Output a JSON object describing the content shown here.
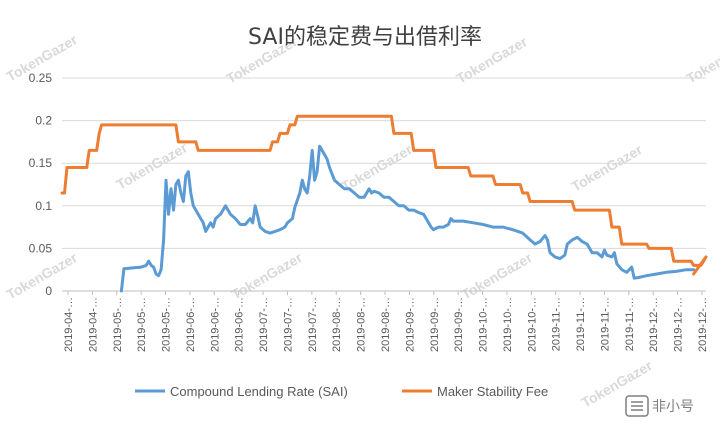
{
  "watermark": "TokenGazer",
  "logo_text": "非小号",
  "chart_data": {
    "type": "line",
    "title": "SAI的稳定费与出借利率",
    "ylim": [
      0,
      0.25
    ],
    "yticks": [
      "0",
      "0.05",
      "0.1",
      "0.15",
      "0.2",
      "0.25"
    ],
    "xticks": [
      "2019-04-…",
      "2019-04-…",
      "2019-05-…",
      "2019-05-…",
      "2019-05-…",
      "2019-06-…",
      "2019-06-…",
      "2019-06-…",
      "2019-07-…",
      "2019-07-…",
      "2019-07-…",
      "2019-08-…",
      "2019-08-…",
      "2019-08-…",
      "2019-09-…",
      "2019-09-…",
      "2019-09-…",
      "2019-10-…",
      "2019-10-…",
      "2019-10-…",
      "2019-11-…",
      "2019-11-…",
      "2019-11-…",
      "2019-11-…",
      "2019-12-…",
      "2019-12-…",
      "2019-12-…"
    ],
    "x_range": [
      0,
      260
    ],
    "legend_position": "bottom",
    "series": [
      {
        "name": "Compound Lending Rate (SAI)",
        "color": "#5B9BD5",
        "points": [
          [
            24,
            0
          ],
          [
            25,
            0.026
          ],
          [
            28,
            0.027
          ],
          [
            32,
            0.028
          ],
          [
            34,
            0.03
          ],
          [
            35,
            0.035
          ],
          [
            36,
            0.03
          ],
          [
            37,
            0.028
          ],
          [
            38,
            0.02
          ],
          [
            39,
            0.018
          ],
          [
            40,
            0.025
          ],
          [
            41,
            0.06
          ],
          [
            42,
            0.13
          ],
          [
            43,
            0.09
          ],
          [
            44,
            0.12
          ],
          [
            45,
            0.095
          ],
          [
            46,
            0.125
          ],
          [
            47,
            0.13
          ],
          [
            48,
            0.115
          ],
          [
            49,
            0.105
          ],
          [
            50,
            0.135
          ],
          [
            51,
            0.14
          ],
          [
            52,
            0.115
          ],
          [
            53,
            0.1
          ],
          [
            55,
            0.09
          ],
          [
            57,
            0.08
          ],
          [
            58,
            0.07
          ],
          [
            60,
            0.08
          ],
          [
            61,
            0.075
          ],
          [
            62,
            0.085
          ],
          [
            64,
            0.09
          ],
          [
            65,
            0.095
          ],
          [
            66,
            0.1
          ],
          [
            68,
            0.09
          ],
          [
            70,
            0.085
          ],
          [
            72,
            0.078
          ],
          [
            74,
            0.078
          ],
          [
            76,
            0.085
          ],
          [
            77,
            0.08
          ],
          [
            78,
            0.1
          ],
          [
            79,
            0.088
          ],
          [
            80,
            0.075
          ],
          [
            82,
            0.07
          ],
          [
            84,
            0.068
          ],
          [
            86,
            0.07
          ],
          [
            88,
            0.072
          ],
          [
            90,
            0.075
          ],
          [
            91,
            0.08
          ],
          [
            93,
            0.085
          ],
          [
            94,
            0.098
          ],
          [
            96,
            0.115
          ],
          [
            97,
            0.13
          ],
          [
            98,
            0.12
          ],
          [
            99,
            0.115
          ],
          [
            100,
            0.135
          ],
          [
            101,
            0.165
          ],
          [
            102,
            0.13
          ],
          [
            103,
            0.14
          ],
          [
            104,
            0.17
          ],
          [
            105,
            0.165
          ],
          [
            106,
            0.16
          ],
          [
            107,
            0.155
          ],
          [
            108,
            0.145
          ],
          [
            110,
            0.13
          ],
          [
            112,
            0.125
          ],
          [
            114,
            0.12
          ],
          [
            116,
            0.12
          ],
          [
            118,
            0.115
          ],
          [
            120,
            0.11
          ],
          [
            122,
            0.11
          ],
          [
            124,
            0.12
          ],
          [
            125,
            0.115
          ],
          [
            126,
            0.117
          ],
          [
            128,
            0.115
          ],
          [
            130,
            0.11
          ],
          [
            132,
            0.11
          ],
          [
            134,
            0.105
          ],
          [
            136,
            0.1
          ],
          [
            138,
            0.1
          ],
          [
            140,
            0.095
          ],
          [
            142,
            0.095
          ],
          [
            144,
            0.092
          ],
          [
            146,
            0.09
          ],
          [
            148,
            0.08
          ],
          [
            149,
            0.075
          ],
          [
            150,
            0.072
          ],
          [
            152,
            0.075
          ],
          [
            154,
            0.075
          ],
          [
            156,
            0.078
          ],
          [
            157,
            0.085
          ],
          [
            158,
            0.082
          ],
          [
            162,
            0.082
          ],
          [
            166,
            0.08
          ],
          [
            170,
            0.078
          ],
          [
            174,
            0.075
          ],
          [
            178,
            0.075
          ],
          [
            182,
            0.072
          ],
          [
            186,
            0.068
          ],
          [
            189,
            0.06
          ],
          [
            191,
            0.055
          ],
          [
            193,
            0.058
          ],
          [
            195,
            0.065
          ],
          [
            196,
            0.06
          ],
          [
            197,
            0.045
          ],
          [
            199,
            0.04
          ],
          [
            201,
            0.038
          ],
          [
            203,
            0.042
          ],
          [
            204,
            0.055
          ],
          [
            206,
            0.06
          ],
          [
            208,
            0.063
          ],
          [
            210,
            0.058
          ],
          [
            212,
            0.055
          ],
          [
            213,
            0.05
          ],
          [
            214,
            0.045
          ],
          [
            216,
            0.045
          ],
          [
            218,
            0.04
          ],
          [
            219,
            0.048
          ],
          [
            220,
            0.042
          ],
          [
            222,
            0.04
          ],
          [
            223,
            0.045
          ],
          [
            224,
            0.032
          ],
          [
            226,
            0.025
          ],
          [
            228,
            0.022
          ],
          [
            230,
            0.028
          ],
          [
            231,
            0.015
          ],
          [
            233,
            0.016
          ],
          [
            236,
            0.018
          ],
          [
            240,
            0.02
          ],
          [
            244,
            0.022
          ],
          [
            248,
            0.023
          ],
          [
            252,
            0.025
          ],
          [
            255,
            0.025
          ]
        ]
      },
      {
        "name": "Maker Stability Fee",
        "color": "#ED7D31",
        "points": [
          [
            0,
            0.115
          ],
          [
            1,
            0.115
          ],
          [
            2,
            0.145
          ],
          [
            10,
            0.145
          ],
          [
            11,
            0.165
          ],
          [
            14,
            0.165
          ],
          [
            15,
            0.185
          ],
          [
            16,
            0.195
          ],
          [
            46,
            0.195
          ],
          [
            47,
            0.175
          ],
          [
            54,
            0.175
          ],
          [
            55,
            0.165
          ],
          [
            84,
            0.165
          ],
          [
            85,
            0.175
          ],
          [
            87,
            0.175
          ],
          [
            88,
            0.185
          ],
          [
            91,
            0.185
          ],
          [
            92,
            0.195
          ],
          [
            94,
            0.195
          ],
          [
            95,
            0.205
          ],
          [
            133,
            0.205
          ],
          [
            134,
            0.185
          ],
          [
            141,
            0.185
          ],
          [
            142,
            0.165
          ],
          [
            150,
            0.165
          ],
          [
            151,
            0.145
          ],
          [
            164,
            0.145
          ],
          [
            165,
            0.135
          ],
          [
            174,
            0.135
          ],
          [
            175,
            0.125
          ],
          [
            185,
            0.125
          ],
          [
            186,
            0.115
          ],
          [
            188,
            0.115
          ],
          [
            189,
            0.105
          ],
          [
            206,
            0.105
          ],
          [
            207,
            0.095
          ],
          [
            221,
            0.095
          ],
          [
            222,
            0.075
          ],
          [
            225,
            0.075
          ],
          [
            226,
            0.055
          ],
          [
            236,
            0.055
          ],
          [
            237,
            0.05
          ],
          [
            246,
            0.05
          ],
          [
            247,
            0.035
          ],
          [
            254,
            0.035
          ],
          [
            255,
            0.03
          ],
          [
            258,
            0.03
          ],
          [
            259,
            0.035
          ],
          [
            260,
            0.04
          ],
          [
            261,
            0.03
          ],
          [
            266,
            0.03
          ],
          [
            267,
            0.02
          ],
          [
            255,
            0.02
          ]
        ]
      }
    ]
  }
}
